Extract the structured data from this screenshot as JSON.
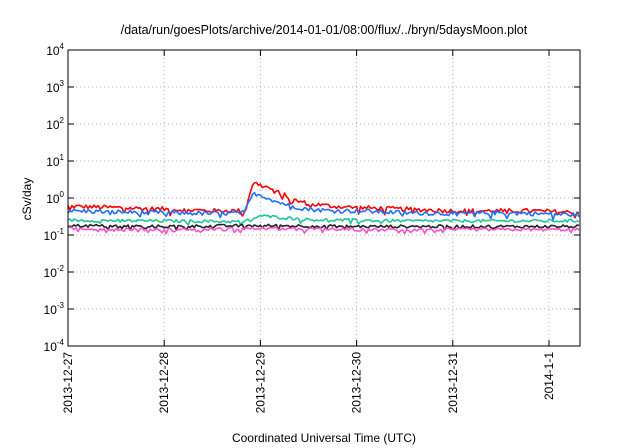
{
  "chart_data": {
    "type": "line",
    "title": "/data/run/goesPlots/archive/2014-01-01/08:00/flux/../bryn/5daysMoon.plot",
    "xlabel": "Coordinated Universal Time (UTC)",
    "ylabel": "cSv/day",
    "yscale": "log",
    "ylim": [
      0.0001,
      10000
    ],
    "xlim": [
      "2013-12-27",
      "2014-01-01 08:00"
    ],
    "grid": true,
    "y_ticks": [
      {
        "base": "10",
        "exp": "-4"
      },
      {
        "base": "10",
        "exp": "-3"
      },
      {
        "base": "10",
        "exp": "-2"
      },
      {
        "base": "10",
        "exp": "-1"
      },
      {
        "base": "10",
        "exp": "0"
      },
      {
        "base": "10",
        "exp": "1"
      },
      {
        "base": "10",
        "exp": "2"
      },
      {
        "base": "10",
        "exp": "3"
      },
      {
        "base": "10",
        "exp": "4"
      }
    ],
    "x_ticks": [
      "2013-12-27",
      "2013-12-28",
      "2013-12-29",
      "2013-12-30",
      "2013-12-31",
      "2014-1-1"
    ],
    "series": [
      {
        "color": "#ff0000",
        "x_hours": [
          0,
          12,
          24,
          36,
          44,
          46,
          47,
          48,
          50,
          52,
          54,
          56,
          60,
          66,
          72,
          84,
          96,
          108,
          116,
          128
        ],
        "y": [
          0.6,
          0.55,
          0.5,
          0.45,
          0.45,
          2.3,
          2.5,
          2.2,
          1.9,
          1.5,
          1.2,
          0.9,
          0.7,
          0.6,
          0.55,
          0.5,
          0.45,
          0.45,
          0.45,
          0.4
        ]
      },
      {
        "color": "#1f6fff",
        "x_hours": [
          0,
          12,
          24,
          36,
          44,
          46,
          47,
          48,
          50,
          52,
          54,
          56,
          60,
          66,
          72,
          84,
          96,
          108,
          116,
          128
        ],
        "y": [
          0.45,
          0.42,
          0.4,
          0.38,
          0.4,
          1.2,
          1.3,
          1.2,
          1.0,
          0.8,
          0.7,
          0.6,
          0.5,
          0.45,
          0.45,
          0.4,
          0.38,
          0.4,
          0.38,
          0.35
        ]
      },
      {
        "color": "#22c49a",
        "x_hours": [
          0,
          24,
          44,
          48,
          60,
          84,
          108,
          128
        ],
        "y": [
          0.25,
          0.24,
          0.23,
          0.33,
          0.26,
          0.24,
          0.24,
          0.24
        ]
      },
      {
        "color": "#222222",
        "x_hours": [
          0,
          24,
          48,
          72,
          96,
          128
        ],
        "y": [
          0.18,
          0.17,
          0.18,
          0.17,
          0.17,
          0.17
        ]
      },
      {
        "color": "#ff4fd0",
        "x_hours": [
          0,
          24,
          48,
          72,
          96,
          128
        ],
        "y": [
          0.15,
          0.14,
          0.15,
          0.14,
          0.14,
          0.14
        ]
      }
    ]
  }
}
